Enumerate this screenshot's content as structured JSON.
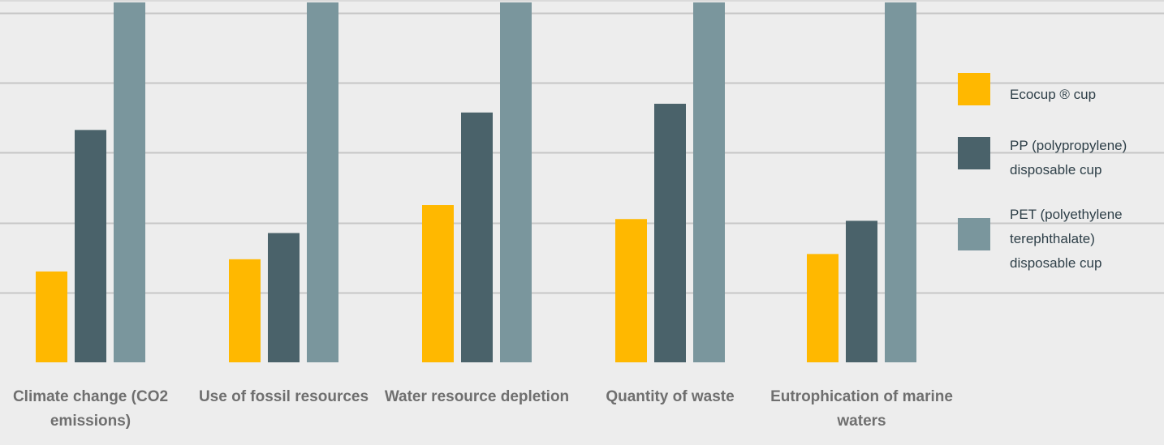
{
  "chart_data": {
    "type": "bar",
    "categories": [
      [
        "Climate change (CO2",
        "emissions)"
      ],
      [
        "Use of fossil resources"
      ],
      [
        "Water resource depletion"
      ],
      [
        "Quantity of waste"
      ],
      [
        "Eutrophication of marine",
        "waters"
      ]
    ],
    "series": [
      {
        "name": [
          "Ecocup ® cup"
        ],
        "color": "#FFB800",
        "values": [
          26,
          29.5,
          45,
          41,
          31
        ]
      },
      {
        "name": [
          "PP (polypropylene)",
          "disposable cup"
        ],
        "color": "#4A626A",
        "values": [
          66.5,
          37,
          71.5,
          74,
          40.5
        ]
      },
      {
        "name": [
          "PET (polyethylene",
          "terephthalate)",
          "disposable cup"
        ],
        "color": "#7A969D",
        "values": [
          103,
          103,
          103,
          103,
          103
        ]
      }
    ],
    "ylim": [
      0,
      103
    ],
    "gridlines": [
      20,
      40,
      60,
      80,
      100
    ],
    "grid": true,
    "legend_position": "right",
    "background_color": "#EDEDED",
    "grid_color": "#C6C6C6"
  }
}
